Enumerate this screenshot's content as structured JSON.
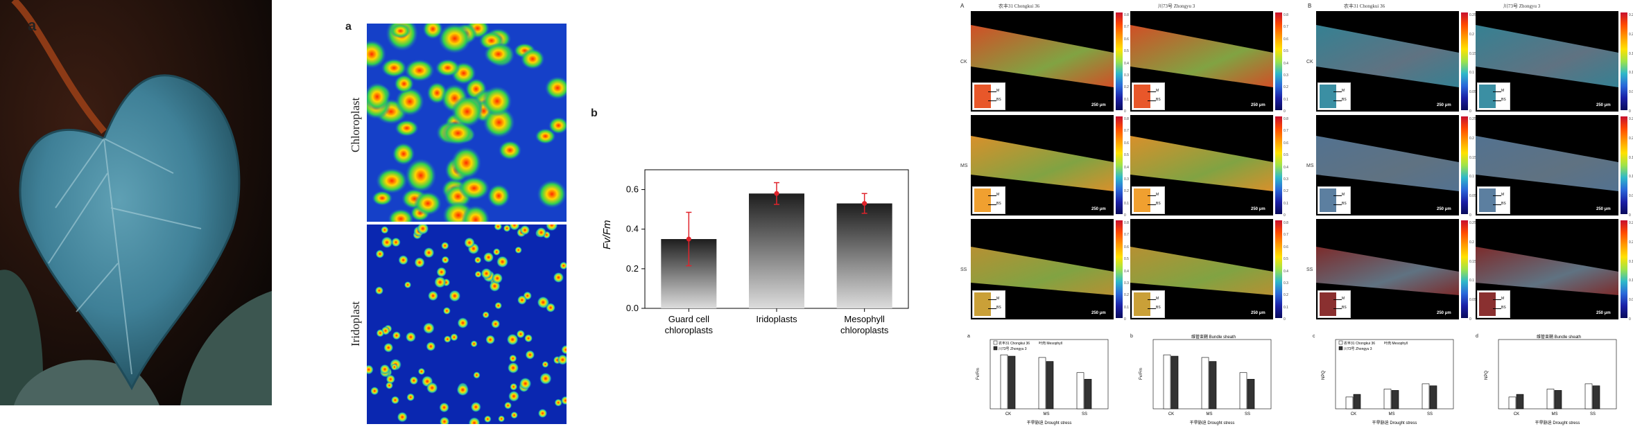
{
  "panel_labels": {
    "leaf": "a",
    "micro": "a",
    "bar_chart": "b",
    "grid_a": "A",
    "grid_b": "B",
    "bottom_a": "a",
    "bottom_b": "b",
    "bottom_c": "c",
    "bottom_d": "d"
  },
  "micro_labels": {
    "top": "Chloroplast",
    "bottom": "Iridoplast"
  },
  "chart_data": [
    {
      "type": "bar",
      "categories": [
        "Guard cell chloroplasts",
        "Iridoplasts",
        "Mesophyll chloroplasts"
      ],
      "values": [
        0.35,
        0.58,
        0.53
      ],
      "errors": [
        0.135,
        0.055,
        0.05
      ],
      "ylabel": "Fv/Fm",
      "ylim": [
        0,
        0.7
      ],
      "yticks": [
        "0.0",
        "0.2",
        "0.4",
        "0.6"
      ],
      "grid": false,
      "colors": {
        "bar_top": "#1e1e1e",
        "bar_bottom": "#dcdcdc",
        "error": "#e0232b",
        "point": "#e0232b"
      }
    }
  ],
  "grid": {
    "col_titles": [
      "农丰31 Chongkui 36",
      "川73号 Zhongyu 3",
      "农丰31 Chongkui 36",
      "川73号 Zhongyu 3"
    ],
    "row_labels": [
      "CK",
      "MS",
      "SS"
    ],
    "colorbar_left": [
      "0.8",
      "0.7",
      "0.6",
      "0.5",
      "0.4",
      "0.3",
      "0.2",
      "0.1",
      "0"
    ],
    "colorbar_right": [
      "0.25",
      "0.2",
      "0.15",
      "0.1",
      "0.05",
      "0"
    ],
    "scale_labels": [
      "250 μm",
      "250 μm",
      "250 μm",
      "250 μm",
      "250 μm",
      "250 μm",
      "250 μm",
      "250 μm",
      "250 μm",
      "250 μm",
      "250 μm",
      "250 μm"
    ],
    "inset_labels": [
      "M",
      "BS"
    ]
  },
  "bottom_charts": {
    "legend": [
      "农丰31 Chongkui 36",
      "川73号 Zhongyu 3"
    ],
    "legend_extra": "叶肉 Mesophyll",
    "titles": [
      "",
      "维管束鞘 Bundle sheath",
      "",
      "维管束鞘 Bundle sheath"
    ],
    "x_categories": [
      "CK",
      "MS",
      "SS"
    ],
    "xlabel": "干旱胁迫 Drought stress",
    "ylabels": [
      "Fv/Fm",
      "Fv/Fm",
      "NPQ",
      "NPQ"
    ]
  }
}
